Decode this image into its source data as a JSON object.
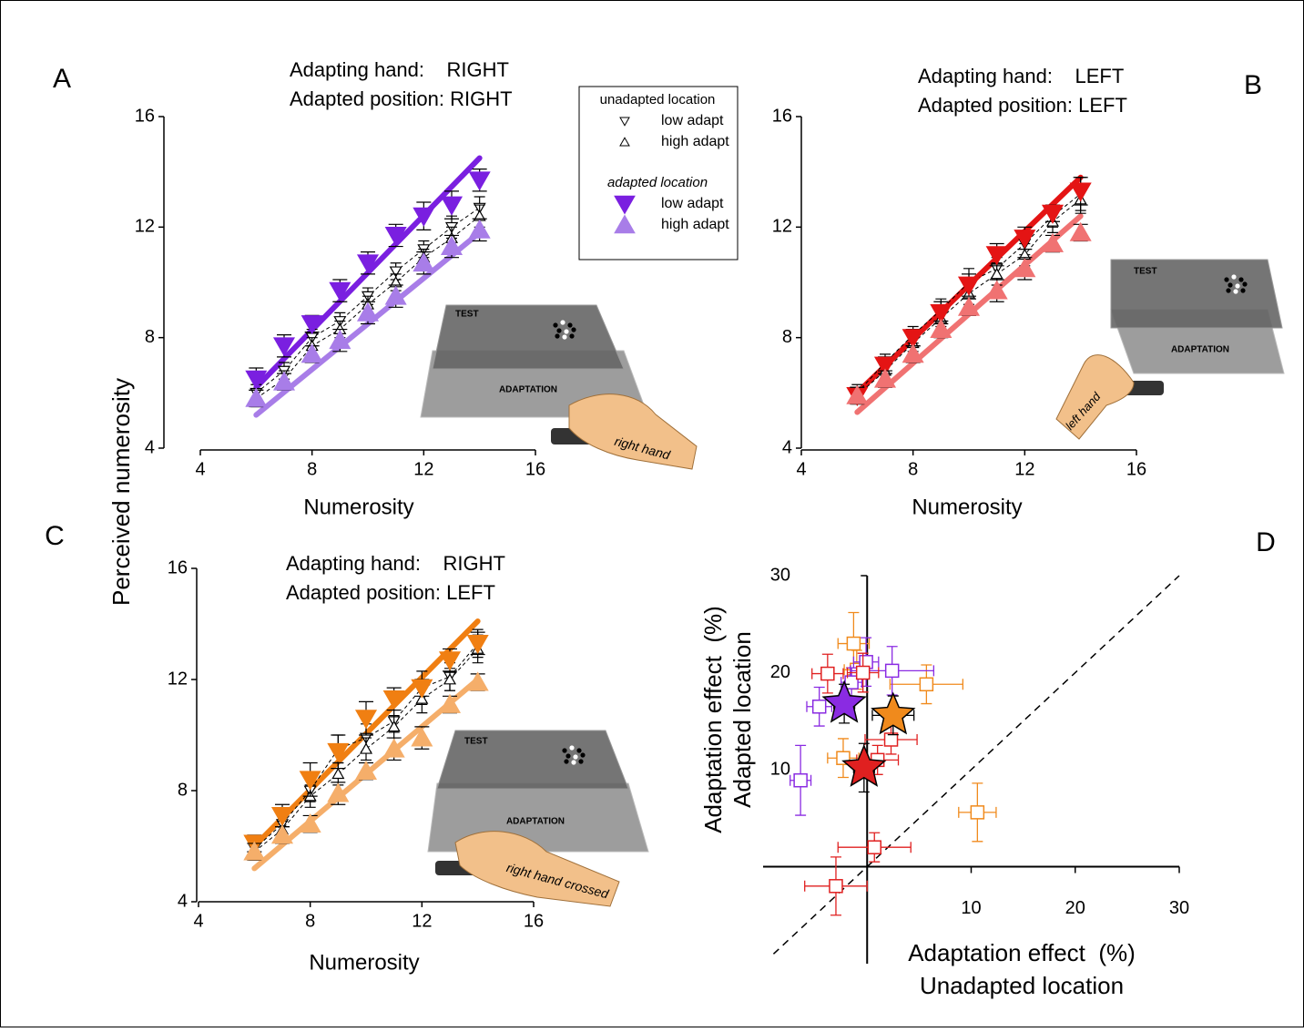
{
  "chart_data": [
    {
      "type": "line",
      "panel": "A",
      "ylabel": "Perceived numerosity",
      "xlabel": "Numerosity",
      "title_lines": [
        "Adapting hand:    RIGHT",
        "Adapted position: RIGHT"
      ],
      "legend_groups": [
        "unadapted location",
        "adapted location"
      ],
      "xlim": [
        4,
        16
      ],
      "ylim": [
        4,
        16
      ],
      "xticks": [
        4,
        8,
        12,
        16
      ],
      "yticks": [
        4,
        8,
        12,
        16
      ],
      "x": [
        6,
        7,
        8,
        9,
        10,
        11,
        12,
        13,
        14
      ],
      "series": [
        {
          "name": "low adapt",
          "marker": "down",
          "filled": false,
          "color": "#000000",
          "values": [
            6.0,
            6.8,
            8.0,
            8.6,
            9.5,
            10.4,
            11.2,
            12.0,
            12.7
          ],
          "errors": [
            0.3,
            0.3,
            0.3,
            0.3,
            0.3,
            0.3,
            0.3,
            0.4,
            0.4
          ]
        },
        {
          "name": "high adapt",
          "marker": "up",
          "filled": false,
          "color": "#000000",
          "values": [
            5.8,
            6.5,
            7.7,
            8.3,
            9.2,
            10.0,
            10.9,
            11.6,
            12.4
          ],
          "errors": [
            0.3,
            0.3,
            0.3,
            0.3,
            0.3,
            0.3,
            0.3,
            0.4,
            0.4
          ]
        },
        {
          "name": "low adapt",
          "marker": "down",
          "filled": true,
          "color": "#7a1fe0",
          "values": [
            6.5,
            7.7,
            8.5,
            9.7,
            10.7,
            11.7,
            12.4,
            12.8,
            13.7
          ],
          "errors": [
            0.4,
            0.4,
            0.3,
            0.4,
            0.4,
            0.4,
            0.5,
            0.5,
            0.4
          ]
        },
        {
          "name": "high adapt",
          "marker": "up",
          "filled": true,
          "color": "#a87de8",
          "values": [
            5.8,
            6.4,
            7.4,
            7.9,
            8.9,
            9.5,
            10.7,
            11.3,
            11.9
          ],
          "errors": [
            0.3,
            0.3,
            0.3,
            0.4,
            0.4,
            0.4,
            0.4,
            0.4,
            0.4
          ]
        }
      ],
      "fits": [
        {
          "color": "#7a1fe0",
          "x": [
            6,
            14
          ],
          "values": [
            6.2,
            14.5
          ]
        },
        {
          "color": "#a87de8",
          "x": [
            6,
            14
          ],
          "values": [
            5.2,
            11.8
          ]
        }
      ],
      "illustration": {
        "test": "TEST",
        "adaptation": "ADAPTATION",
        "hand": "right hand"
      }
    },
    {
      "type": "line",
      "panel": "B",
      "xlabel": "Numerosity",
      "title_lines": [
        "Adapting hand:    LEFT",
        "Adapted position: LEFT"
      ],
      "xlim": [
        4,
        16
      ],
      "ylim": [
        4,
        16
      ],
      "xticks": [
        4,
        8,
        12,
        16
      ],
      "yticks": [
        4,
        8,
        12,
        16
      ],
      "x": [
        6,
        7,
        8,
        9,
        10,
        11,
        12,
        13,
        14
      ],
      "series": [
        {
          "marker": "down",
          "filled": false,
          "color": "#000000",
          "values": [
            6.0,
            7.1,
            8.1,
            9.0,
            10.0,
            10.5,
            11.4,
            12.4,
            13.2
          ],
          "errors": [
            0.3,
            0.3,
            0.3,
            0.4,
            0.5,
            0.4,
            0.4,
            0.4,
            0.6
          ]
        },
        {
          "marker": "up",
          "filled": false,
          "color": "#000000",
          "values": [
            5.9,
            6.8,
            7.8,
            8.7,
            9.6,
            10.3,
            11.0,
            12.2,
            13.0
          ],
          "errors": [
            0.3,
            0.3,
            0.3,
            0.3,
            0.4,
            0.4,
            0.4,
            0.4,
            0.5
          ]
        },
        {
          "marker": "down",
          "filled": true,
          "color": "#e41414",
          "values": [
            5.9,
            7.0,
            8.0,
            8.9,
            9.9,
            11.0,
            11.6,
            12.5,
            13.3
          ],
          "errors": [
            0.3,
            0.3,
            0.3,
            0.4,
            0.4,
            0.4,
            0.4,
            0.3,
            0.5
          ]
        },
        {
          "marker": "up",
          "filled": true,
          "color": "#f07272",
          "values": [
            5.9,
            6.5,
            7.4,
            8.3,
            9.1,
            9.7,
            10.5,
            11.4,
            11.8
          ],
          "errors": [
            0.3,
            0.3,
            0.3,
            0.3,
            0.3,
            0.4,
            0.4,
            0.3,
            0.3
          ]
        }
      ],
      "fits": [
        {
          "color": "#e41414",
          "x": [
            6,
            14
          ],
          "values": [
            6.0,
            13.8
          ]
        },
        {
          "color": "#f07272",
          "x": [
            6,
            14
          ],
          "values": [
            5.3,
            12.4
          ]
        }
      ],
      "illustration": {
        "test": "TEST",
        "adaptation": "ADAPTATION",
        "hand": "left hand"
      }
    },
    {
      "type": "line",
      "panel": "C",
      "xlabel": "Numerosity",
      "title_lines": [
        "Adapting hand:    RIGHT",
        "Adapted position: LEFT"
      ],
      "xlim": [
        4,
        16
      ],
      "ylim": [
        4,
        16
      ],
      "xticks": [
        4,
        8,
        12,
        16
      ],
      "yticks": [
        4,
        8,
        12,
        16
      ],
      "x": [
        6,
        7,
        8,
        9,
        10,
        11,
        12,
        13,
        14
      ],
      "series": [
        {
          "marker": "down",
          "filled": false,
          "color": "#000000",
          "values": [
            5.9,
            6.8,
            8.0,
            9.5,
            9.9,
            10.5,
            11.7,
            12.1,
            13.3
          ],
          "errors": [
            0.3,
            0.4,
            0.4,
            0.5,
            0.5,
            0.4,
            0.6,
            0.5,
            0.5
          ]
        },
        {
          "marker": "up",
          "filled": false,
          "color": "#000000",
          "values": [
            5.8,
            6.6,
            7.8,
            8.6,
            9.5,
            10.3,
            11.3,
            12.0,
            13.1
          ],
          "errors": [
            0.3,
            0.3,
            0.4,
            0.4,
            0.4,
            0.4,
            0.5,
            0.4,
            0.5
          ]
        },
        {
          "marker": "down",
          "filled": true,
          "color": "#f07f12",
          "values": [
            6.1,
            7.1,
            8.4,
            9.4,
            10.6,
            11.3,
            11.7,
            12.7,
            13.3
          ],
          "errors": [
            0.3,
            0.4,
            0.6,
            0.6,
            0.6,
            0.4,
            0.3,
            0.4,
            0.4
          ]
        },
        {
          "marker": "up",
          "filled": true,
          "color": "#f5ae6a",
          "values": [
            5.8,
            6.4,
            6.8,
            7.9,
            8.7,
            9.5,
            9.9,
            11.1,
            11.9
          ],
          "errors": [
            0.3,
            0.3,
            0.3,
            0.4,
            0.3,
            0.4,
            0.4,
            0.3,
            0.3
          ]
        }
      ],
      "fits": [
        {
          "color": "#f07f12",
          "x": [
            6,
            14
          ],
          "values": [
            6.0,
            14.1
          ]
        },
        {
          "color": "#f5ae6a",
          "x": [
            6,
            14
          ],
          "values": [
            5.2,
            12.0
          ]
        }
      ],
      "illustration": {
        "test": "TEST",
        "adaptation": "ADAPTATION",
        "hand": "right hand crossed"
      }
    },
    {
      "type": "scatter",
      "panel": "D",
      "ylabel_lines": [
        "Adaptation effect  (%)",
        "Adapted location"
      ],
      "xlabel_lines": [
        "Adaptation effect  (%)",
        "Unadapted location"
      ],
      "xlim": [
        -10,
        30
      ],
      "ylim": [
        -10,
        30
      ],
      "xticks": [
        10,
        20,
        30
      ],
      "yticks": [
        10,
        20,
        30
      ],
      "diagonal": {
        "x": [
          -9,
          30
        ],
        "values": [
          -9,
          30
        ]
      },
      "series": [
        {
          "marker": "square",
          "color": "#f08a1c",
          "x": [
            -1.3,
            5.7,
            10.6,
            -2.3,
            -1.0
          ],
          "values": [
            23.0,
            18.8,
            5.6,
            11.2,
            20.3
          ],
          "xerr": [
            1.5,
            3.5,
            1.8,
            1.5,
            1.2
          ],
          "yerr": [
            3.2,
            2.0,
            3.0,
            2.0,
            2.0
          ]
        },
        {
          "marker": "square",
          "color": "#8a2be2",
          "x": [
            -6.4,
            -4.6,
            -0.1,
            2.4,
            -1.5
          ],
          "values": [
            8.9,
            16.5,
            21.1,
            20.2,
            19.0
          ],
          "xerr": [
            1.0,
            1.2,
            1.2,
            4.0,
            1.0
          ],
          "yerr": [
            3.6,
            2.0,
            2.5,
            2.5,
            1.5
          ]
        },
        {
          "marker": "square",
          "color": "#e02020",
          "x": [
            -3.8,
            -0.4,
            2.3,
            1.0,
            0.7,
            -3.0
          ],
          "values": [
            19.9,
            20.0,
            13.1,
            11.0,
            2.0,
            -2.0
          ],
          "xerr": [
            1.5,
            1.5,
            2.5,
            2.0,
            3.5,
            3.0
          ],
          "yerr": [
            2.0,
            2.0,
            1.5,
            1.5,
            1.5,
            3.0
          ]
        },
        {
          "marker": "star",
          "color": "#8a2be2",
          "x": [
            -2.2
          ],
          "values": [
            16.8
          ],
          "xerr": [
            1.0
          ],
          "yerr": [
            2.0
          ]
        },
        {
          "marker": "star",
          "color": "#f08a1c",
          "x": [
            2.5
          ],
          "values": [
            15.6
          ],
          "xerr": [
            2.0
          ],
          "yerr": [
            2.0
          ]
        },
        {
          "marker": "star",
          "color": "#e02020",
          "x": [
            -0.3
          ],
          "values": [
            10.2
          ],
          "xerr": [
            1.0
          ],
          "yerr": [
            2.5
          ]
        }
      ]
    }
  ]
}
